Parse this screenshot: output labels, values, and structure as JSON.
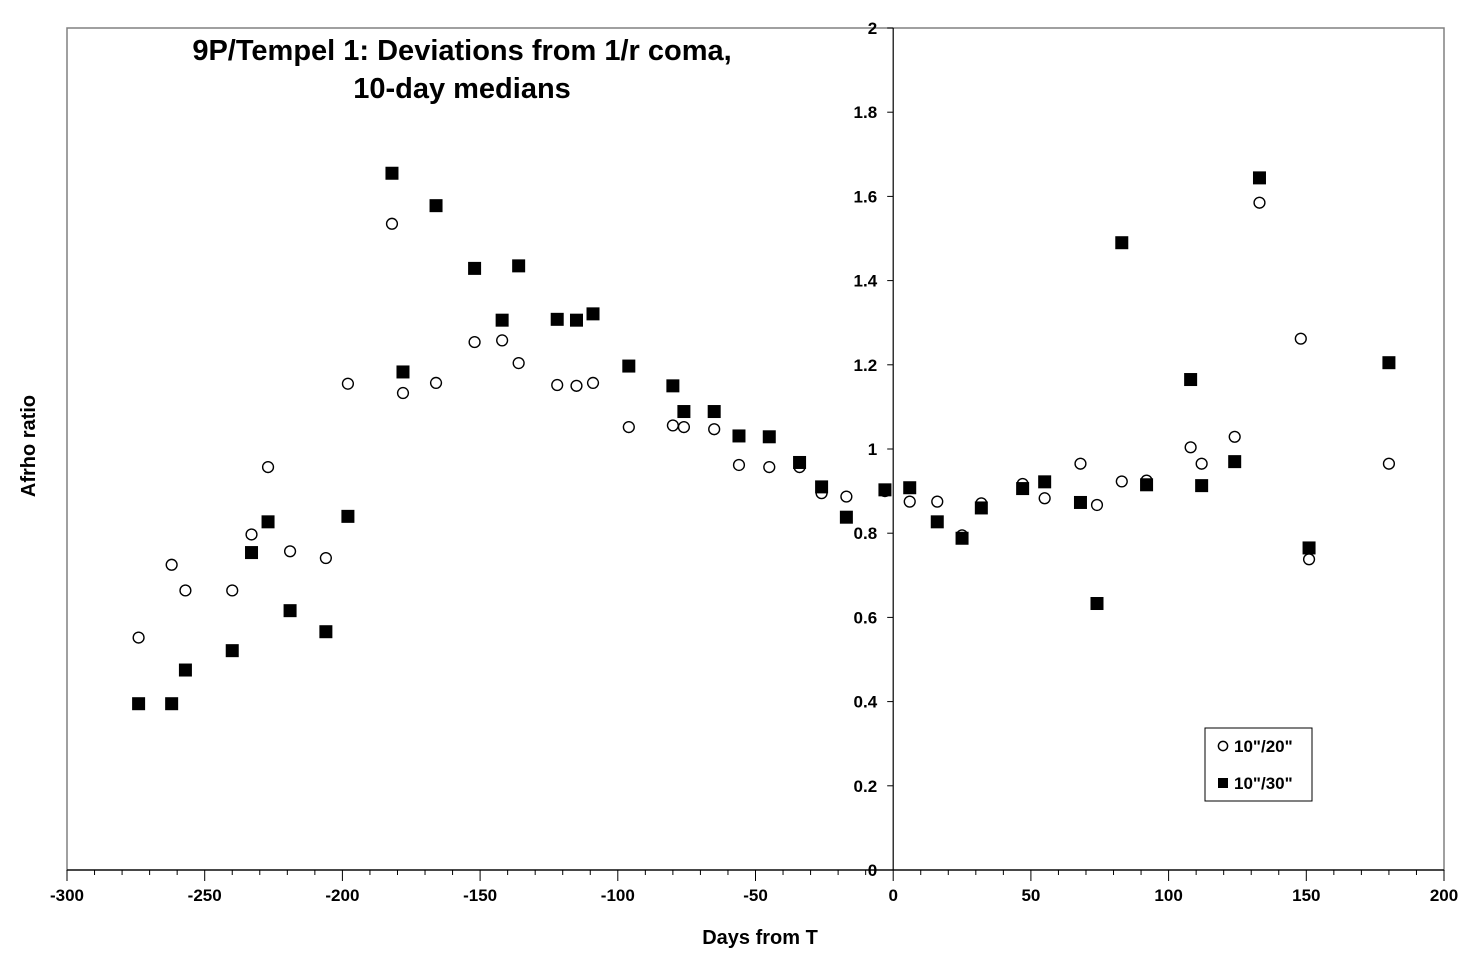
{
  "chart_data": {
    "type": "scatter",
    "title_lines": [
      "9P/Tempel 1: Deviations from 1/r coma,",
      "10-day medians"
    ],
    "xlabel": "Days from T",
    "ylabel": "Afrho ratio",
    "xlim": [
      -300,
      200
    ],
    "ylim": [
      0,
      2
    ],
    "x_ticks": [
      -300,
      -250,
      -200,
      -150,
      -100,
      -50,
      0,
      50,
      100,
      150,
      200
    ],
    "y_ticks": [
      0,
      0.2,
      0.4,
      0.6,
      0.8,
      1,
      1.2,
      1.4,
      1.6,
      1.8,
      2
    ],
    "y_tick_labels": [
      "0",
      "0.2",
      "0.4",
      "0.6",
      "0.8",
      "1",
      "1.2",
      "1.4",
      "1.6",
      "1.8",
      "2"
    ],
    "grid": false,
    "legend_position": "bottom-right",
    "series": [
      {
        "name": "10\"/20\"",
        "marker": "open-circle",
        "points": [
          [
            -274,
            0.552
          ],
          [
            -262,
            0.725
          ],
          [
            -257,
            0.664
          ],
          [
            -240,
            0.664
          ],
          [
            -233,
            0.797
          ],
          [
            -227,
            0.957
          ],
          [
            -219,
            0.757
          ],
          [
            -206,
            0.741
          ],
          [
            -198,
            1.155
          ],
          [
            -182,
            1.535
          ],
          [
            -178,
            1.133
          ],
          [
            -166,
            1.157
          ],
          [
            -152,
            1.254
          ],
          [
            -142,
            1.258
          ],
          [
            -136,
            1.204
          ],
          [
            -122,
            1.152
          ],
          [
            -115,
            1.15
          ],
          [
            -109,
            1.157
          ],
          [
            -96,
            1.052
          ],
          [
            -80,
            1.056
          ],
          [
            -76,
            1.052
          ],
          [
            -65,
            1.047
          ],
          [
            -56,
            0.962
          ],
          [
            -45,
            0.957
          ],
          [
            -34,
            0.957
          ],
          [
            -26,
            0.895
          ],
          [
            -17,
            0.887
          ],
          [
            -3,
            0.9
          ],
          [
            6,
            0.875
          ],
          [
            16,
            0.875
          ],
          [
            25,
            0.795
          ],
          [
            32,
            0.871
          ],
          [
            47,
            0.917
          ],
          [
            55,
            0.883
          ],
          [
            68,
            0.965
          ],
          [
            74,
            0.867
          ],
          [
            83,
            0.923
          ],
          [
            92,
            0.925
          ],
          [
            108,
            1.004
          ],
          [
            112,
            0.965
          ],
          [
            124,
            1.029
          ],
          [
            133,
            1.585
          ],
          [
            148,
            1.262
          ],
          [
            151,
            0.738
          ],
          [
            180,
            0.965
          ]
        ]
      },
      {
        "name": "10\"/30\"",
        "marker": "filled-square",
        "points": [
          [
            -274,
            0.395
          ],
          [
            -262,
            0.395
          ],
          [
            -257,
            0.475
          ],
          [
            -240,
            0.521
          ],
          [
            -233,
            0.754
          ],
          [
            -227,
            0.827
          ],
          [
            -219,
            0.616
          ],
          [
            -206,
            0.566
          ],
          [
            -198,
            0.84
          ],
          [
            -182,
            1.655
          ],
          [
            -178,
            1.183
          ],
          [
            -166,
            1.578
          ],
          [
            -152,
            1.429
          ],
          [
            -142,
            1.306
          ],
          [
            -136,
            1.435
          ],
          [
            -122,
            1.308
          ],
          [
            -115,
            1.306
          ],
          [
            -109,
            1.321
          ],
          [
            -96,
            1.197
          ],
          [
            -80,
            1.15
          ],
          [
            -76,
            1.089
          ],
          [
            -65,
            1.089
          ],
          [
            -56,
            1.031
          ],
          [
            -45,
            1.029
          ],
          [
            -34,
            0.968
          ],
          [
            -26,
            0.91
          ],
          [
            -17,
            0.838
          ],
          [
            -3,
            0.903
          ],
          [
            6,
            0.908
          ],
          [
            16,
            0.827
          ],
          [
            25,
            0.788
          ],
          [
            32,
            0.86
          ],
          [
            47,
            0.906
          ],
          [
            55,
            0.922
          ],
          [
            68,
            0.873
          ],
          [
            74,
            0.633
          ],
          [
            83,
            1.49
          ],
          [
            92,
            0.915
          ],
          [
            108,
            1.165
          ],
          [
            112,
            0.913
          ],
          [
            124,
            0.97
          ],
          [
            133,
            1.644
          ],
          [
            151,
            0.765
          ],
          [
            180,
            1.205
          ]
        ]
      }
    ]
  }
}
